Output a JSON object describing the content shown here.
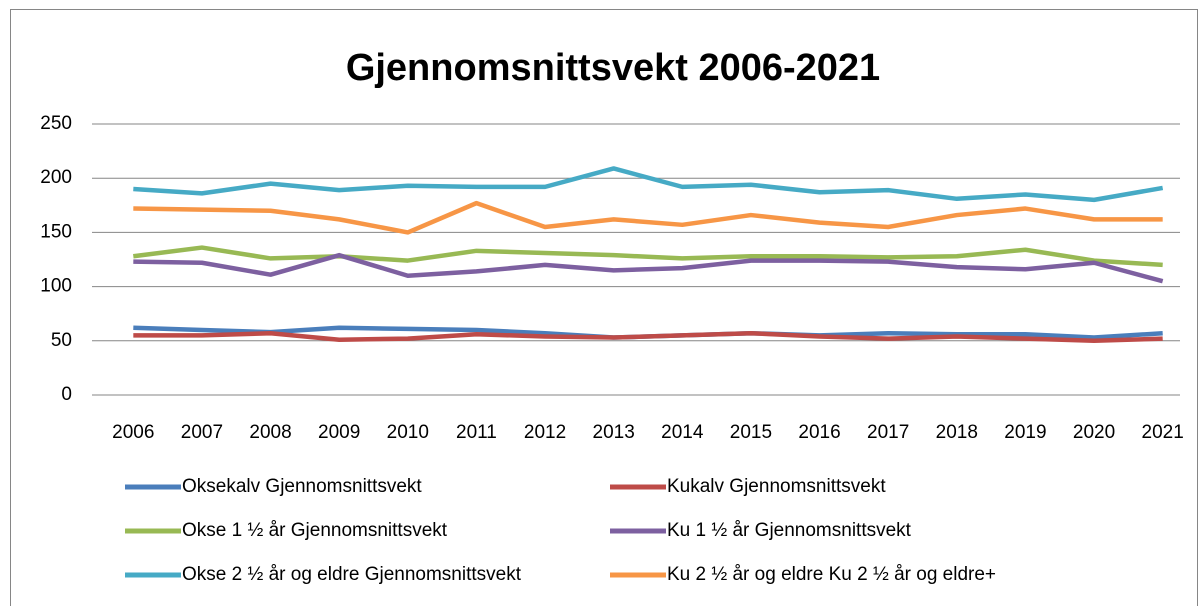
{
  "chart_data": {
    "type": "line",
    "title": "Gjennomsnittsvekt 2006-2021",
    "categories": [
      "2006",
      "2007",
      "2008",
      "2009",
      "2010",
      "2011",
      "2012",
      "2013",
      "2014",
      "2015",
      "2016",
      "2017",
      "2018",
      "2019",
      "2020",
      "2021"
    ],
    "series": [
      {
        "name": "Oksekalv Gjennomsnittsvekt",
        "color": "#4a7ebb",
        "values": [
          62,
          60,
          58,
          62,
          61,
          60,
          57,
          53,
          55,
          57,
          55,
          57,
          56,
          56,
          53,
          57
        ]
      },
      {
        "name": "Kukalv Gjennomsnittsvekt",
        "color": "#be4b48",
        "values": [
          55,
          55,
          57,
          51,
          52,
          56,
          54,
          53,
          55,
          57,
          54,
          52,
          54,
          52,
          50,
          52
        ]
      },
      {
        "name": "Okse 1 ½ år Gjennomsnittsvekt",
        "color": "#98b954",
        "values": [
          128,
          136,
          126,
          128,
          124,
          133,
          131,
          129,
          126,
          128,
          128,
          127,
          128,
          134,
          124,
          120
        ]
      },
      {
        "name": "Ku 1 ½ år Gjennomsnittsvekt",
        "color": "#7d60a0",
        "values": [
          123,
          122,
          111,
          129,
          110,
          114,
          120,
          115,
          117,
          124,
          124,
          123,
          118,
          116,
          122,
          105
        ]
      },
      {
        "name": "Okse 2 ½ år og eldre Gjennomsnittsvekt",
        "color": "#46aac5",
        "values": [
          190,
          186,
          195,
          189,
          193,
          192,
          192,
          209,
          192,
          194,
          187,
          189,
          181,
          185,
          180,
          191
        ]
      },
      {
        "name": "Ku 2 ½ år og eldre Ku 2 ½ år og eldre+",
        "color": "#f79646",
        "values": [
          172,
          171,
          170,
          162,
          150,
          177,
          155,
          162,
          157,
          166,
          159,
          155,
          166,
          172,
          162,
          162
        ]
      }
    ],
    "ylim": [
      0,
      250
    ],
    "yticks": [
      0,
      50,
      100,
      150,
      200,
      250
    ],
    "grid": true
  }
}
